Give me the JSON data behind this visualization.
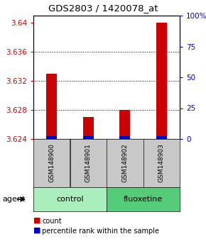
{
  "title": "GDS2803 / 1420078_at",
  "samples": [
    "GSM148900",
    "GSM148901",
    "GSM148902",
    "GSM148903"
  ],
  "red_values": [
    3.633,
    3.627,
    3.628,
    3.64
  ],
  "blue_values": [
    3.6244,
    3.6244,
    3.6244,
    3.6244
  ],
  "base_value": 3.624,
  "ymin": 3.624,
  "ymax": 3.641,
  "yticks_left": [
    3.624,
    3.628,
    3.632,
    3.636,
    3.64
  ],
  "yticks_right": [
    0,
    25,
    50,
    75,
    100
  ],
  "yticks_right_labels": [
    "0",
    "25",
    "50",
    "75",
    "100%"
  ],
  "group_configs": [
    {
      "start": 0,
      "end": 2,
      "label": "control",
      "color": "#AAEEBB"
    },
    {
      "start": 2,
      "end": 4,
      "label": "fluoxetine",
      "color": "#55CC77"
    }
  ],
  "agent_label": "agent",
  "bar_width": 0.3,
  "red_color": "#CC0000",
  "blue_color": "#0000CC",
  "bg_color": "#FFFFFF",
  "sample_box_color": "#C8C8C8",
  "legend_red": "count",
  "legend_blue": "percentile rank within the sample",
  "title_fontsize": 9.5,
  "tick_fontsize": 7.5,
  "sample_fontsize": 6.5,
  "group_fontsize": 8,
  "legend_fontsize": 7,
  "agent_fontsize": 8
}
